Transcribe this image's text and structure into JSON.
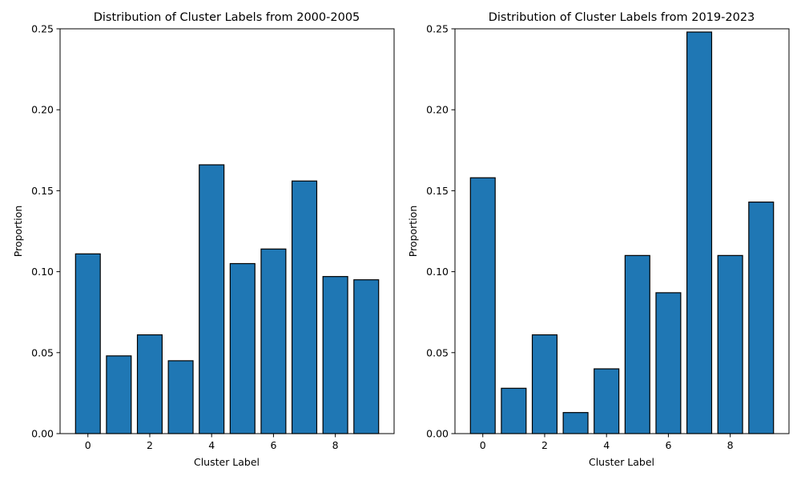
{
  "chart_data": [
    {
      "type": "bar",
      "title": "Distribution of Cluster Labels from 2000-2005",
      "xlabel": "Cluster Label",
      "ylabel": "Proportion",
      "categories": [
        0,
        1,
        2,
        3,
        4,
        5,
        6,
        7,
        8,
        9
      ],
      "values": [
        0.111,
        0.048,
        0.061,
        0.045,
        0.166,
        0.105,
        0.114,
        0.156,
        0.097,
        0.095
      ],
      "xlim": [
        -0.9,
        9.9
      ],
      "ylim": [
        0,
        0.25
      ],
      "xticks": [
        0,
        2,
        4,
        6,
        8
      ],
      "xtick_labels": [
        "0",
        "2",
        "4",
        "6",
        "8"
      ],
      "yticks": [
        0,
        0.05,
        0.1,
        0.15,
        0.2,
        0.25
      ],
      "ytick_labels": [
        "0.00",
        "0.05",
        "0.10",
        "0.15",
        "0.20",
        "0.25"
      ],
      "grid": false,
      "bar_color": "#1f77b4",
      "edge_color": "#000000"
    },
    {
      "type": "bar",
      "title": "Distribution of Cluster Labels from 2019-2023",
      "xlabel": "Cluster Label",
      "ylabel": "Proportion",
      "categories": [
        0,
        1,
        2,
        3,
        4,
        5,
        6,
        7,
        8,
        9
      ],
      "values": [
        0.158,
        0.028,
        0.061,
        0.013,
        0.04,
        0.11,
        0.087,
        0.248,
        0.11,
        0.143
      ],
      "xlim": [
        -0.9,
        9.9
      ],
      "ylim": [
        0,
        0.25
      ],
      "xticks": [
        0,
        2,
        4,
        6,
        8
      ],
      "xtick_labels": [
        "0",
        "2",
        "4",
        "6",
        "8"
      ],
      "yticks": [
        0,
        0.05,
        0.1,
        0.15,
        0.2,
        0.25
      ],
      "ytick_labels": [
        "0.00",
        "0.05",
        "0.10",
        "0.15",
        "0.20",
        "0.25"
      ],
      "grid": false,
      "bar_color": "#1f77b4",
      "edge_color": "#000000"
    }
  ]
}
